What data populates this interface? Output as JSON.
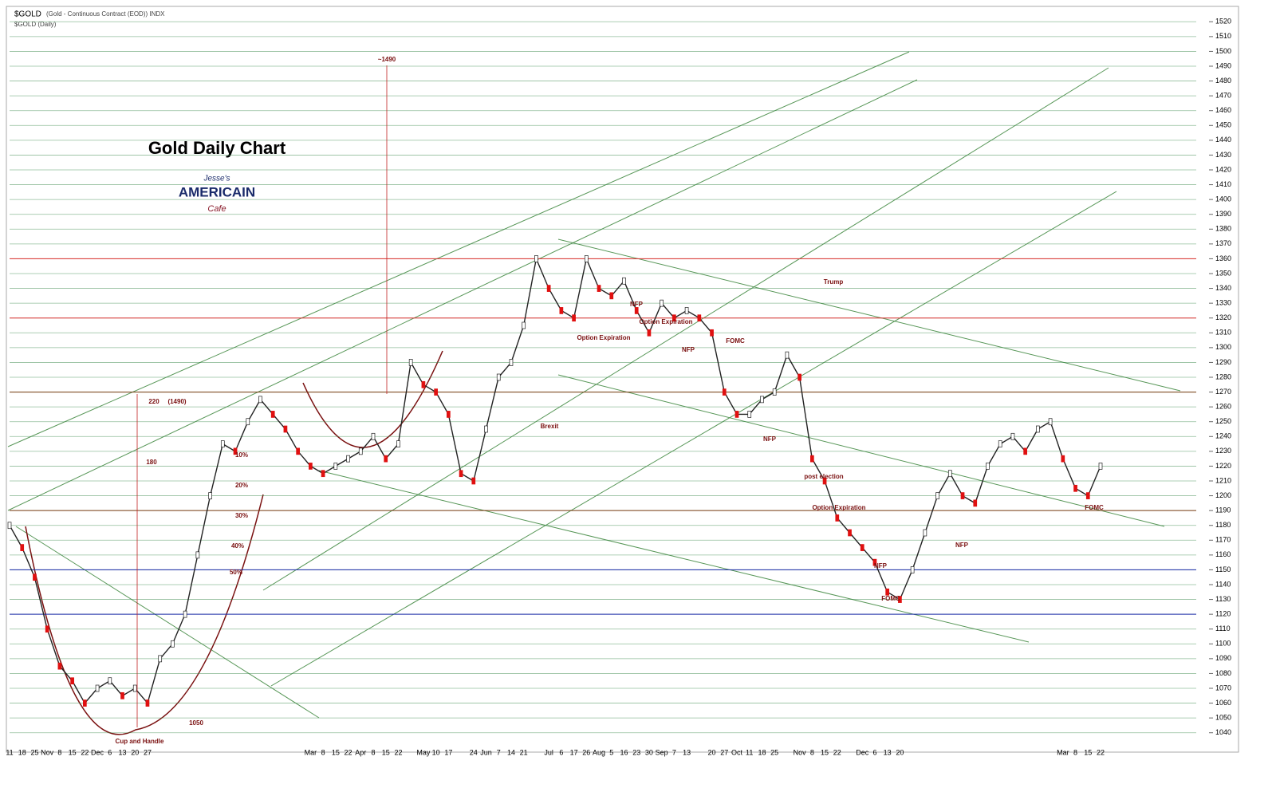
{
  "header": {
    "symbol": "$GOLD",
    "description": "(Gold - Continuous Contract (EOD)) INDX",
    "period": "$GOLD (Daily)"
  },
  "logo": {
    "top": "Jesse's",
    "middle": "AMERICAIN",
    "bottom": "Cafe"
  },
  "chart_data": {
    "type": "line",
    "title": "Gold Daily Chart",
    "color": "#222222",
    "categories": [
      "11",
      "18",
      "25",
      "Nov",
      "8",
      "15",
      "22",
      "Dec",
      "6",
      "13",
      "20",
      "27",
      null,
      null,
      null,
      null,
      null,
      null,
      null,
      null,
      null,
      null,
      null,
      null,
      "Mar",
      "8",
      "15",
      "22",
      "Apr",
      "8",
      "15",
      "22",
      null,
      "May",
      "10",
      "17",
      null,
      "24",
      "Jun",
      "7",
      "14",
      "21",
      null,
      "Jul",
      "6",
      "17",
      "26",
      "Aug",
      "5",
      "16",
      "23",
      "30",
      "Sep",
      "7",
      "13",
      null,
      "20",
      "27",
      "Oct",
      "11",
      "18",
      "25",
      null,
      "Nov",
      "8",
      "15",
      "22",
      null,
      "Dec",
      "6",
      "13",
      "20",
      null,
      null,
      null,
      null,
      null,
      null,
      null,
      null,
      null,
      null,
      null,
      null,
      "Mar",
      "8",
      "15",
      "22"
    ],
    "values": [
      1180,
      1165,
      1145,
      1110,
      1085,
      1075,
      1060,
      1070,
      1075,
      1065,
      1070,
      1060,
      1090,
      1100,
      1120,
      1160,
      1200,
      1235,
      1230,
      1250,
      1265,
      1255,
      1245,
      1230,
      1220,
      1215,
      1220,
      1225,
      1230,
      1240,
      1225,
      1235,
      1290,
      1275,
      1270,
      1255,
      1215,
      1210,
      1245,
      1280,
      1290,
      1315,
      1360,
      1340,
      1325,
      1320,
      1360,
      1340,
      1335,
      1345,
      1325,
      1310,
      1330,
      1320,
      1325,
      1320,
      1310,
      1270,
      1255,
      1255,
      1265,
      1270,
      1295,
      1280,
      1225,
      1210,
      1185,
      1175,
      1165,
      1155,
      1135,
      1130,
      1150,
      1175,
      1200,
      1215,
      1200,
      1195,
      1220,
      1235,
      1240,
      1230,
      1245,
      1250,
      1225,
      1205,
      1200,
      1220
    ],
    "ylim": [
      1035,
      1525
    ],
    "yticks": [
      1040,
      1050,
      1060,
      1070,
      1080,
      1090,
      1100,
      1110,
      1120,
      1130,
      1140,
      1150,
      1160,
      1170,
      1180,
      1190,
      1200,
      1210,
      1220,
      1230,
      1240,
      1250,
      1260,
      1270,
      1280,
      1290,
      1300,
      1310,
      1320,
      1330,
      1340,
      1350,
      1360,
      1370,
      1380,
      1390,
      1400,
      1410,
      1420,
      1430,
      1440,
      1450,
      1460,
      1470,
      1480,
      1490,
      1500,
      1510,
      1520
    ],
    "grid": true,
    "levels": [
      {
        "value": 1320,
        "color": "#e03030"
      },
      {
        "value": 1360,
        "color": "#e03030"
      },
      {
        "value": 1270,
        "color": "#7a3b10"
      },
      {
        "value": 1190,
        "color": "#7a3b10"
      },
      {
        "value": 1150,
        "color": "#1a2aa8"
      },
      {
        "value": 1120,
        "color": "#1a2aa8"
      }
    ],
    "annotations": [
      "~1490",
      "220",
      "(1490)",
      "180",
      "10%",
      "20%",
      "30%",
      "40%",
      "50%",
      "1050",
      "Cup and Handle",
      "Brexit",
      "Option Expiration",
      "NFP",
      "Option Expiration",
      "NFP",
      "FOMC",
      "Trump",
      "NFP",
      "post election",
      "Option Expiration",
      "NFP",
      "FOMC",
      "NFP",
      "FOMC"
    ]
  }
}
